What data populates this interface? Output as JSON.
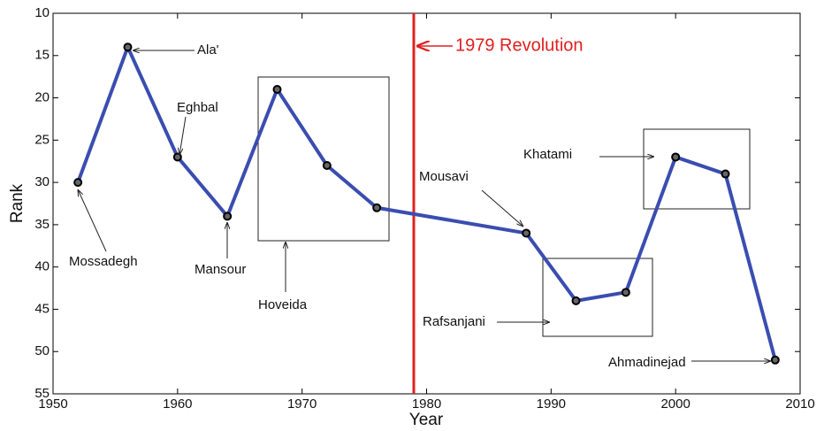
{
  "chart_data": {
    "type": "line",
    "x_label": "Year",
    "y_label": "Rank",
    "x": [
      1952,
      1956,
      1960,
      1964,
      1968,
      1972,
      1976,
      1988,
      1992,
      1996,
      2000,
      2004,
      2008
    ],
    "series": [
      {
        "name": "Rank",
        "color": "#3a4db0",
        "values": [
          30,
          14,
          27,
          34,
          19,
          28,
          33,
          36,
          44,
          43,
          27,
          29,
          51
        ]
      }
    ],
    "xlim": [
      1950,
      2010
    ],
    "xticks": [
      1950,
      1960,
      1970,
      1980,
      1990,
      2000,
      2010
    ],
    "ylim": [
      10,
      55
    ],
    "yticks": [
      10,
      15,
      20,
      25,
      30,
      35,
      40,
      45,
      50,
      55
    ],
    "y_inverted": true,
    "annotations": [
      "Ala'",
      "Eghbal",
      "Mossadegh",
      "Mansour",
      "Hoveida",
      "1979 Revolution",
      "Mousavi",
      "Rafsanjani",
      "Khatami",
      "Ahmadinejad"
    ]
  }
}
